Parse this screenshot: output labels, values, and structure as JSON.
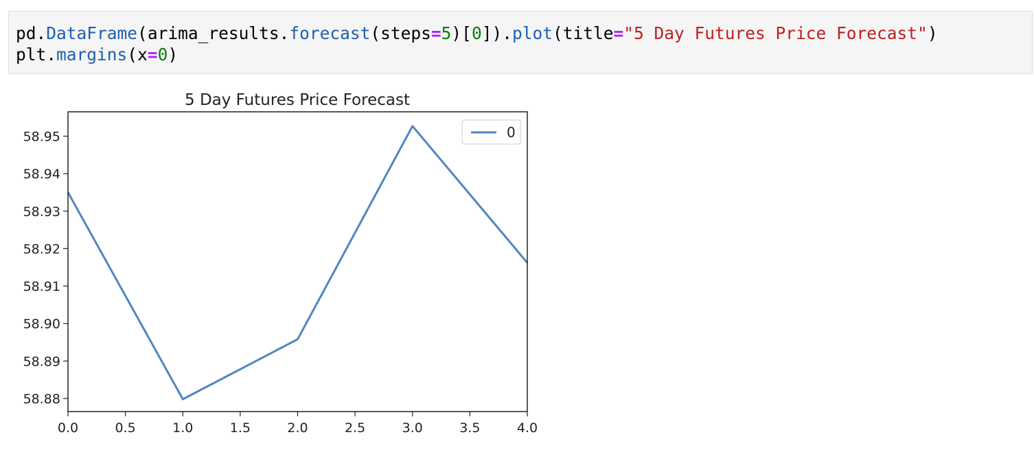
{
  "code_cell": {
    "lines": [
      [
        {
          "text": "pd",
          "cls": "tok-nm"
        },
        {
          "text": ".",
          "cls": "tok-p"
        },
        {
          "text": "DataFrame",
          "cls": "tok-fn"
        },
        {
          "text": "(",
          "cls": "tok-p"
        },
        {
          "text": "arima_results",
          "cls": "tok-nm"
        },
        {
          "text": ".",
          "cls": "tok-p"
        },
        {
          "text": "forecast",
          "cls": "tok-fn"
        },
        {
          "text": "(",
          "cls": "tok-p"
        },
        {
          "text": "steps",
          "cls": "tok-nm"
        },
        {
          "text": "=",
          "cls": "tok-op"
        },
        {
          "text": "5",
          "cls": "tok-num"
        },
        {
          "text": ")[",
          "cls": "tok-p"
        },
        {
          "text": "0",
          "cls": "tok-num"
        },
        {
          "text": "])",
          "cls": "tok-p"
        },
        {
          "text": ".",
          "cls": "tok-p"
        },
        {
          "text": "plot",
          "cls": "tok-fn"
        },
        {
          "text": "(",
          "cls": "tok-p"
        },
        {
          "text": "title",
          "cls": "tok-nm"
        },
        {
          "text": "=",
          "cls": "tok-op"
        },
        {
          "text": "\"5 Day Futures Price Forecast\"",
          "cls": "tok-str"
        },
        {
          "text": ")",
          "cls": "tok-p"
        }
      ],
      [
        {
          "text": "plt",
          "cls": "tok-nm"
        },
        {
          "text": ".",
          "cls": "tok-p"
        },
        {
          "text": "margins",
          "cls": "tok-fn"
        },
        {
          "text": "(",
          "cls": "tok-p"
        },
        {
          "text": "x",
          "cls": "tok-nm"
        },
        {
          "text": "=",
          "cls": "tok-op"
        },
        {
          "text": "0",
          "cls": "tok-num"
        },
        {
          "text": ")",
          "cls": "tok-p"
        }
      ]
    ]
  },
  "chart_data": {
    "type": "line",
    "title": "5 Day Futures Price Forecast",
    "x": [
      0,
      1,
      2,
      3,
      4
    ],
    "series": [
      {
        "name": "0",
        "values": [
          58.935,
          58.8798,
          58.8958,
          58.9527,
          58.9162
        ],
        "color": "#4f86c0"
      }
    ],
    "xlim": [
      0,
      4
    ],
    "ylim": [
      58.8765,
      58.9565
    ],
    "xticks": [
      0.0,
      0.5,
      1.0,
      1.5,
      2.0,
      2.5,
      3.0,
      3.5,
      4.0
    ],
    "xtick_labels": [
      "0.0",
      "0.5",
      "1.0",
      "1.5",
      "2.0",
      "2.5",
      "3.0",
      "3.5",
      "4.0"
    ],
    "yticks": [
      58.88,
      58.89,
      58.9,
      58.91,
      58.92,
      58.93,
      58.94,
      58.95
    ],
    "ytick_labels": [
      "58.88",
      "58.89",
      "58.90",
      "58.91",
      "58.92",
      "58.93",
      "58.94",
      "58.95"
    ],
    "grid": false,
    "legend_position": "top-right"
  }
}
